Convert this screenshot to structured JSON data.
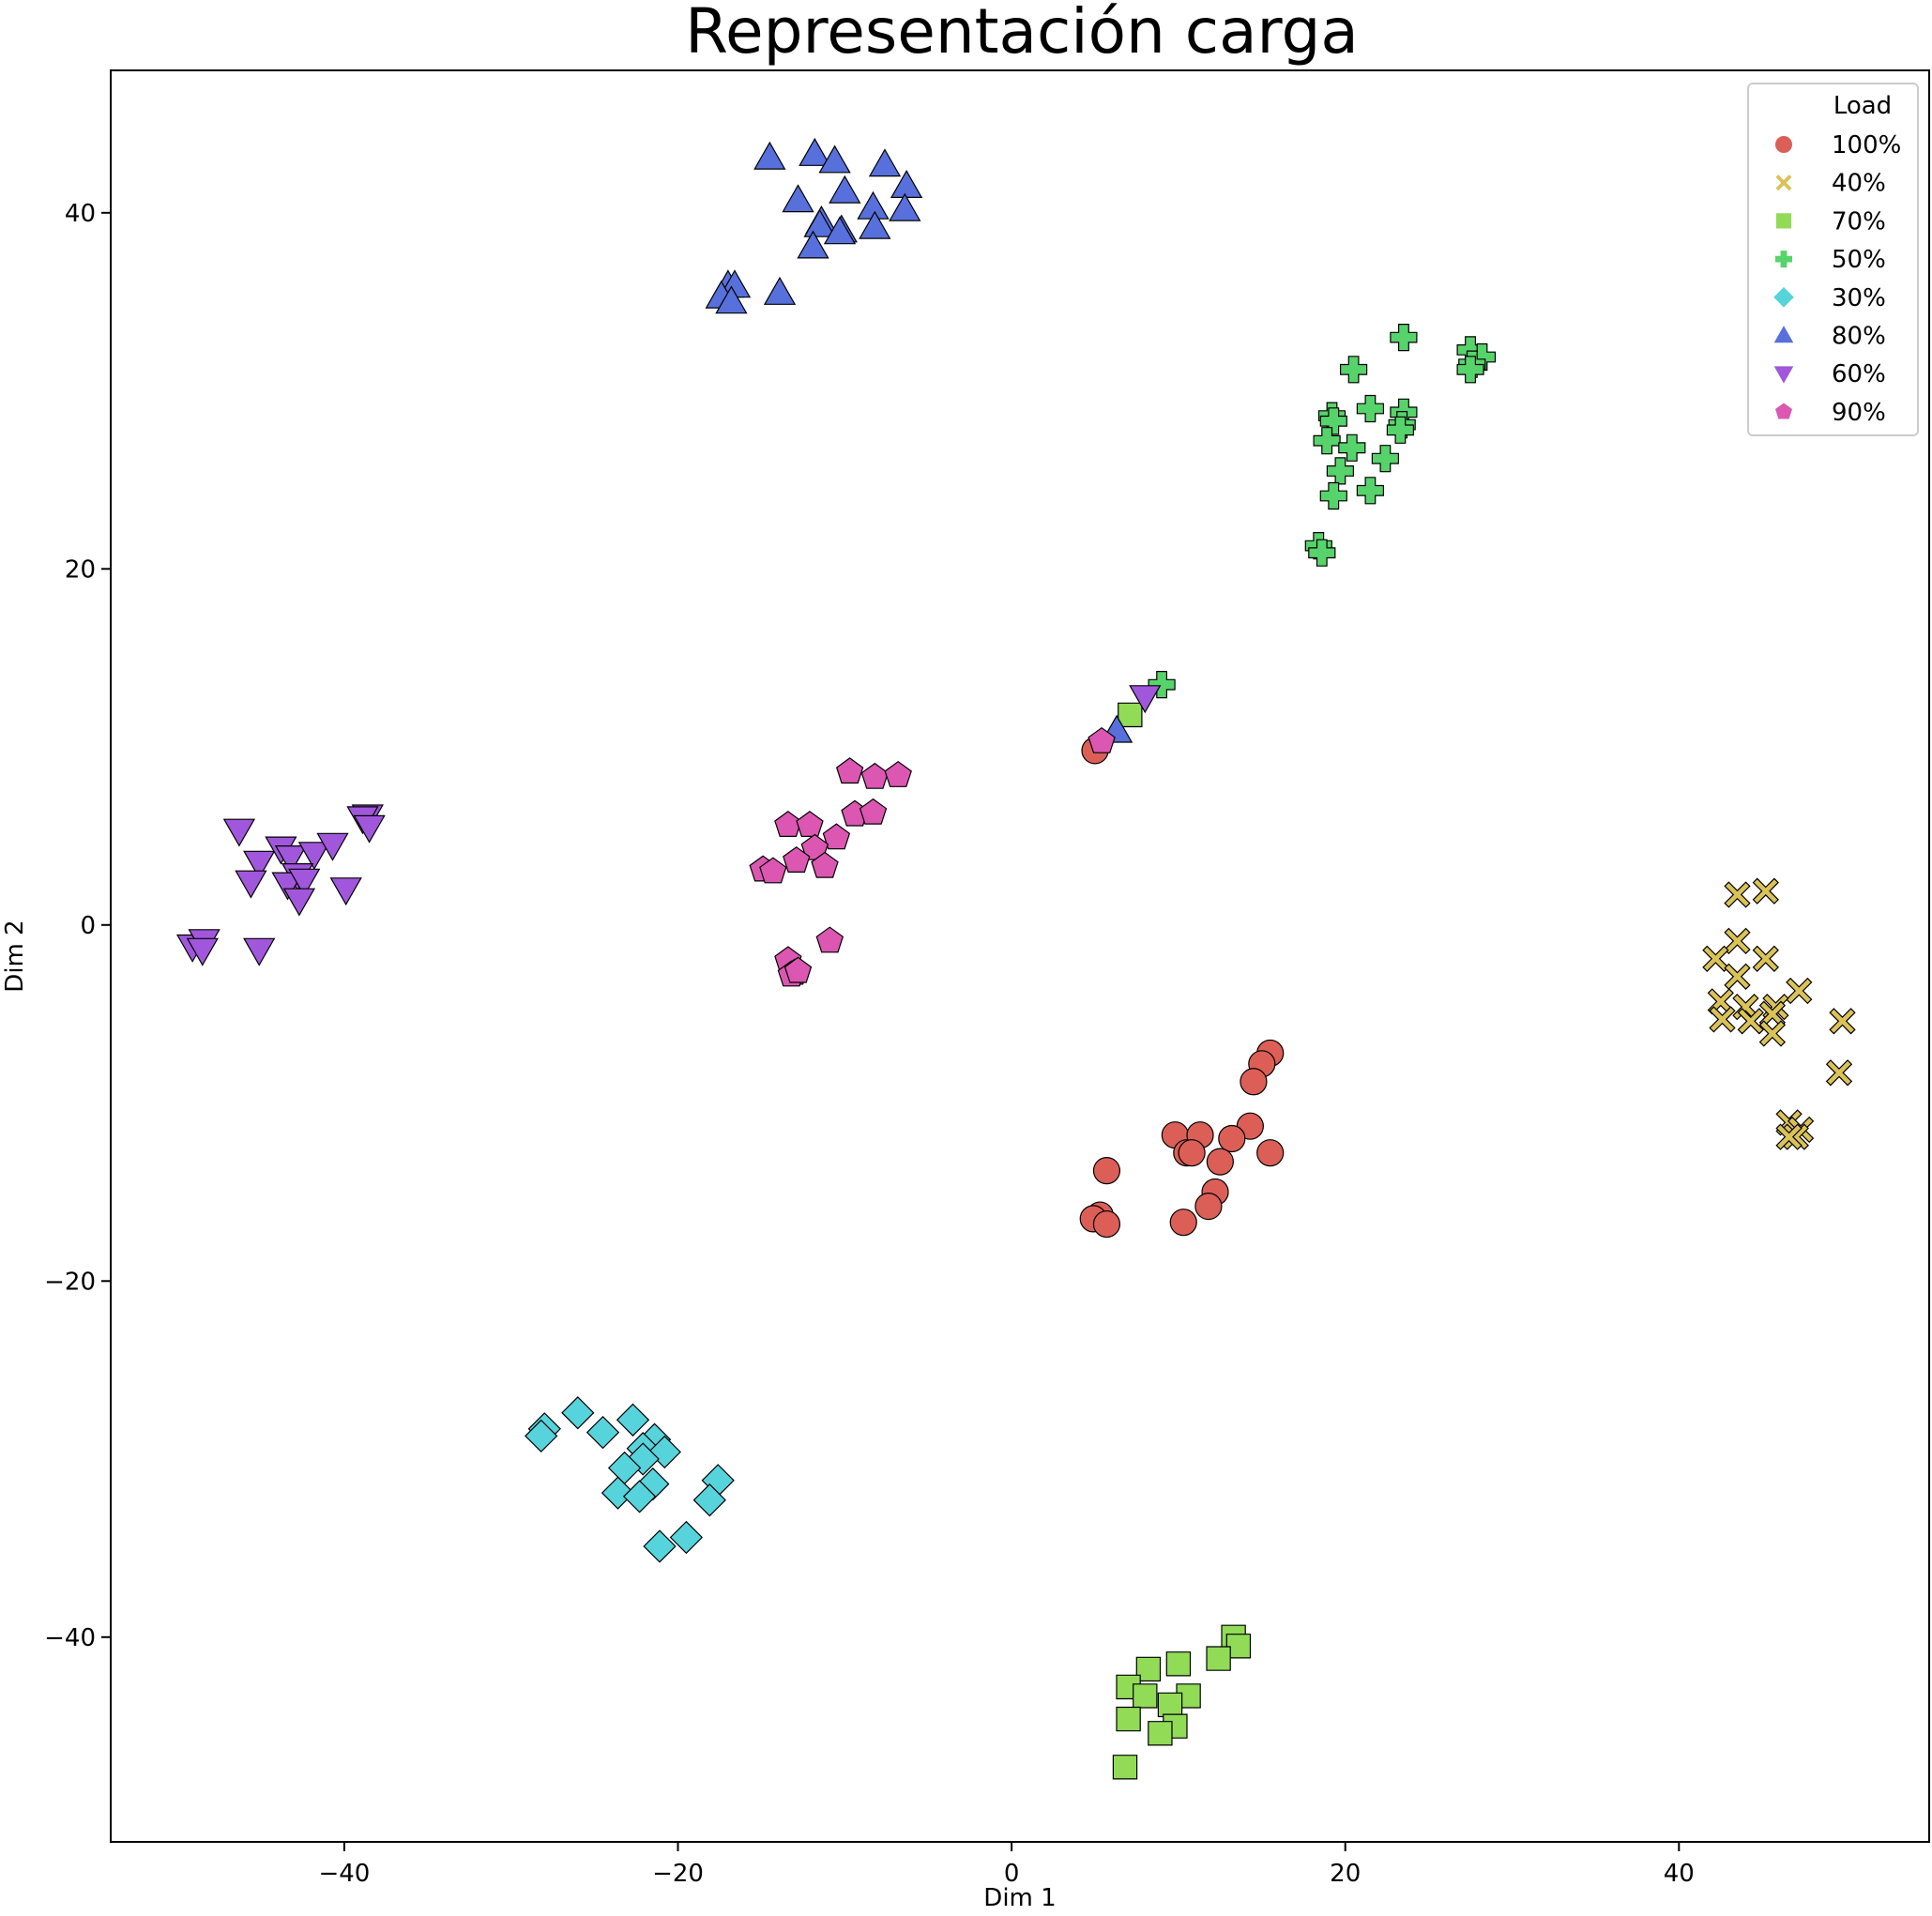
{
  "chart_data": {
    "type": "scatter",
    "title": "Representación carga",
    "xlabel": "Dim 1",
    "ylabel": "Dim 2",
    "xlim": [
      -54,
      55
    ],
    "ylim": [
      -51.5,
      48
    ],
    "xticks": [
      -40,
      -20,
      0,
      20,
      40
    ],
    "yticks": [
      -40,
      -20,
      0,
      20,
      40
    ],
    "xtick_labels": [
      "−40",
      "−20",
      "0",
      "20",
      "40"
    ],
    "ytick_labels": [
      "−40",
      "−20",
      "0",
      "20",
      "40"
    ],
    "grid": false,
    "legend": {
      "title": "Load",
      "position": "top-right"
    },
    "series": [
      {
        "name": "100%",
        "marker": "circle",
        "color": "#db5f57",
        "points": [
          [
            5.0,
            9.8
          ],
          [
            15.5,
            -7.2
          ],
          [
            15.0,
            -7.8
          ],
          [
            14.5,
            -8.8
          ],
          [
            14.3,
            -11.3
          ],
          [
            9.8,
            -11.8
          ],
          [
            11.3,
            -11.8
          ],
          [
            13.2,
            -12.0
          ],
          [
            10.5,
            -12.8
          ],
          [
            10.8,
            -12.8
          ],
          [
            15.5,
            -12.8
          ],
          [
            12.5,
            -13.3
          ],
          [
            5.7,
            -13.8
          ],
          [
            12.2,
            -15.0
          ],
          [
            11.8,
            -15.8
          ],
          [
            5.3,
            -16.3
          ],
          [
            4.9,
            -16.5
          ],
          [
            5.7,
            -16.8
          ],
          [
            10.3,
            -16.7
          ]
        ]
      },
      {
        "name": "40%",
        "marker": "x",
        "color": "#dbc257",
        "points": [
          [
            43.5,
            1.7
          ],
          [
            45.2,
            1.9
          ],
          [
            43.5,
            -0.9
          ],
          [
            42.2,
            -1.9
          ],
          [
            45.2,
            -1.9
          ],
          [
            43.5,
            -2.9
          ],
          [
            47.2,
            -3.7
          ],
          [
            42.5,
            -4.3
          ],
          [
            44.0,
            -4.6
          ],
          [
            45.8,
            -4.6
          ],
          [
            45.6,
            -5.0
          ],
          [
            42.6,
            -5.3
          ],
          [
            44.3,
            -5.4
          ],
          [
            49.8,
            -5.4
          ],
          [
            45.6,
            -6.1
          ],
          [
            49.6,
            -8.3
          ],
          [
            46.6,
            -11.1
          ],
          [
            47.3,
            -11.5
          ],
          [
            47.0,
            -11.9
          ],
          [
            46.6,
            -11.9
          ]
        ]
      },
      {
        "name": "70%",
        "marker": "square",
        "color": "#91db57",
        "points": [
          [
            7.1,
            11.8
          ],
          [
            13.3,
            -40.0
          ],
          [
            13.6,
            -40.5
          ],
          [
            12.4,
            -41.2
          ],
          [
            8.2,
            -41.8
          ],
          [
            10.0,
            -41.5
          ],
          [
            7.0,
            -42.8
          ],
          [
            8.0,
            -43.3
          ],
          [
            10.6,
            -43.3
          ],
          [
            9.5,
            -43.8
          ],
          [
            7.0,
            -44.6
          ],
          [
            9.8,
            -45.0
          ],
          [
            8.9,
            -45.4
          ],
          [
            6.8,
            -47.3
          ]
        ]
      },
      {
        "name": "50%",
        "marker": "plus",
        "color": "#57d36b",
        "points": [
          [
            9.0,
            13.5
          ],
          [
            23.5,
            33.0
          ],
          [
            27.5,
            32.3
          ],
          [
            28.2,
            31.9
          ],
          [
            27.6,
            31.5
          ],
          [
            27.5,
            31.2
          ],
          [
            20.5,
            31.2
          ],
          [
            21.5,
            29.0
          ],
          [
            23.5,
            28.8
          ],
          [
            19.2,
            28.6
          ],
          [
            19.3,
            28.3
          ],
          [
            23.4,
            28.1
          ],
          [
            23.3,
            27.8
          ],
          [
            18.9,
            27.2
          ],
          [
            20.4,
            26.8
          ],
          [
            22.4,
            26.2
          ],
          [
            19.7,
            25.5
          ],
          [
            21.5,
            24.4
          ],
          [
            19.3,
            24.1
          ],
          [
            18.4,
            21.3
          ],
          [
            18.6,
            20.9
          ]
        ]
      },
      {
        "name": "30%",
        "marker": "diamond",
        "color": "#57d3db",
        "points": [
          [
            -26.0,
            -27.4
          ],
          [
            -22.7,
            -27.8
          ],
          [
            -28.0,
            -28.3
          ],
          [
            -24.5,
            -28.5
          ],
          [
            -28.2,
            -28.7
          ],
          [
            -21.4,
            -28.9
          ],
          [
            -22.1,
            -29.4
          ],
          [
            -20.8,
            -29.6
          ],
          [
            -22.1,
            -30.0
          ],
          [
            -23.2,
            -30.5
          ],
          [
            -21.5,
            -31.4
          ],
          [
            -17.6,
            -31.2
          ],
          [
            -23.6,
            -31.9
          ],
          [
            -22.3,
            -32.1
          ],
          [
            -18.1,
            -32.3
          ],
          [
            -21.1,
            -34.9
          ],
          [
            -19.5,
            -34.4
          ]
        ]
      },
      {
        "name": "80%",
        "marker": "triangle-up",
        "color": "#5770db",
        "points": [
          [
            -14.5,
            43.1
          ],
          [
            -11.8,
            43.3
          ],
          [
            -10.6,
            42.9
          ],
          [
            -7.6,
            42.7
          ],
          [
            -6.3,
            41.5
          ],
          [
            -10.0,
            41.2
          ],
          [
            -12.8,
            40.7
          ],
          [
            -8.3,
            40.3
          ],
          [
            -6.4,
            40.2
          ],
          [
            -11.4,
            39.5
          ],
          [
            -11.5,
            39.3
          ],
          [
            -10.2,
            39.0
          ],
          [
            -8.2,
            39.2
          ],
          [
            -10.3,
            38.9
          ],
          [
            -11.9,
            38.1
          ],
          [
            -17.0,
            35.9
          ],
          [
            -16.6,
            35.9
          ],
          [
            -17.4,
            35.3
          ],
          [
            -16.8,
            35.0
          ],
          [
            -13.9,
            35.5
          ],
          [
            6.3,
            10.9
          ]
        ]
      },
      {
        "name": "60%",
        "marker": "triangle-down",
        "color": "#a157db",
        "points": [
          [
            8.0,
            12.8
          ],
          [
            -38.6,
            6.1
          ],
          [
            -38.9,
            6.0
          ],
          [
            -38.5,
            5.5
          ],
          [
            -46.3,
            5.3
          ],
          [
            -45.1,
            3.5
          ],
          [
            -43.8,
            4.3
          ],
          [
            -43.2,
            3.8
          ],
          [
            -41.8,
            4.0
          ],
          [
            -40.7,
            4.5
          ],
          [
            -42.8,
            2.8
          ],
          [
            -45.6,
            2.4
          ],
          [
            -43.4,
            2.3
          ],
          [
            -42.4,
            2.5
          ],
          [
            -39.9,
            2.0
          ],
          [
            -42.7,
            1.4
          ],
          [
            -49.1,
            -1.2
          ],
          [
            -48.4,
            -0.9
          ],
          [
            -48.5,
            -1.4
          ],
          [
            -45.1,
            -1.4
          ]
        ]
      },
      {
        "name": "90%",
        "marker": "pentagon",
        "color": "#db57b2",
        "points": [
          [
            5.4,
            10.3
          ],
          [
            -9.7,
            8.6
          ],
          [
            -8.2,
            8.3
          ],
          [
            -6.8,
            8.4
          ],
          [
            -9.4,
            6.2
          ],
          [
            -8.3,
            6.3
          ],
          [
            -13.4,
            5.6
          ],
          [
            -12.1,
            5.6
          ],
          [
            -10.5,
            4.9
          ],
          [
            -11.8,
            4.3
          ],
          [
            -12.9,
            3.6
          ],
          [
            -11.2,
            3.3
          ],
          [
            -14.9,
            3.1
          ],
          [
            -14.3,
            3.0
          ],
          [
            -10.9,
            -0.9
          ],
          [
            -13.4,
            -2.0
          ],
          [
            -13.0,
            -2.7
          ],
          [
            -13.2,
            -2.8
          ],
          [
            -12.8,
            -2.6
          ]
        ]
      }
    ]
  }
}
